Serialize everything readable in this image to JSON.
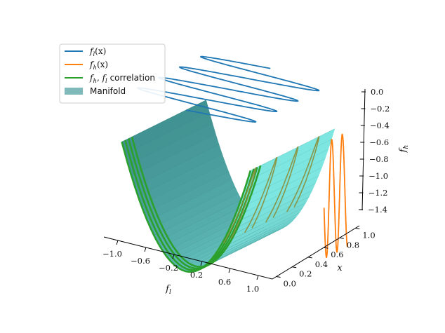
{
  "chart_data": {
    "type": "line",
    "projection": "3d",
    "legend_position": "top-left",
    "grid": false,
    "xlabel": "f_l",
    "ylabel": "x",
    "zlabel": "f_h",
    "xlim": [
      -1.2,
      1.2
    ],
    "ylim": [
      0.0,
      1.0
    ],
    "zlim": [
      -1.4,
      0.0
    ],
    "x_ticks": [
      "−1.0",
      "−0.6",
      "−0.2",
      "0.2",
      "0.6",
      "1.0"
    ],
    "y_ticks": [
      "0.0",
      "0.2",
      "0.4",
      "0.6",
      "0.8",
      "1.0"
    ],
    "z_ticks": [
      "0.0",
      "−0.2",
      "−0.4",
      "−0.6",
      "−0.8",
      "−1.0",
      "−1.2",
      "−1.4"
    ],
    "series": [
      {
        "name": "f_l(x)",
        "color": "#1f77b4",
        "relation": "f_l = sin(8πx), projected at f_h = −1.4"
      },
      {
        "name": "f_h(x)",
        "color": "#ff7f0e",
        "relation": "f_h = −(f_l)², projected at f_l = 1.2"
      },
      {
        "name": "f_h, f_l correlation",
        "color": "#2ca02c",
        "relation": "f_h = −(f_l)², projected at x = 0"
      },
      {
        "name": "Manifold",
        "color": "#5fa8a8",
        "relation": "surface f_h = −(f_l)²"
      }
    ],
    "colors": {
      "surface_light": "#7ee6e0",
      "surface_dark": "#3f8f8f",
      "olive_curve": "#8a8f3a"
    }
  },
  "legend": {
    "items": [
      {
        "label_main": "f",
        "label_sub": "l",
        "label_tail": "(x)"
      },
      {
        "label_main": "f",
        "label_sub": "h",
        "label_tail": "(x)"
      },
      {
        "label_main": "f",
        "label_sub": "h",
        "label_mid": ", f",
        "label_sub2": "l",
        "label_tail": " correlation"
      },
      {
        "label_text": "Manifold"
      }
    ]
  }
}
